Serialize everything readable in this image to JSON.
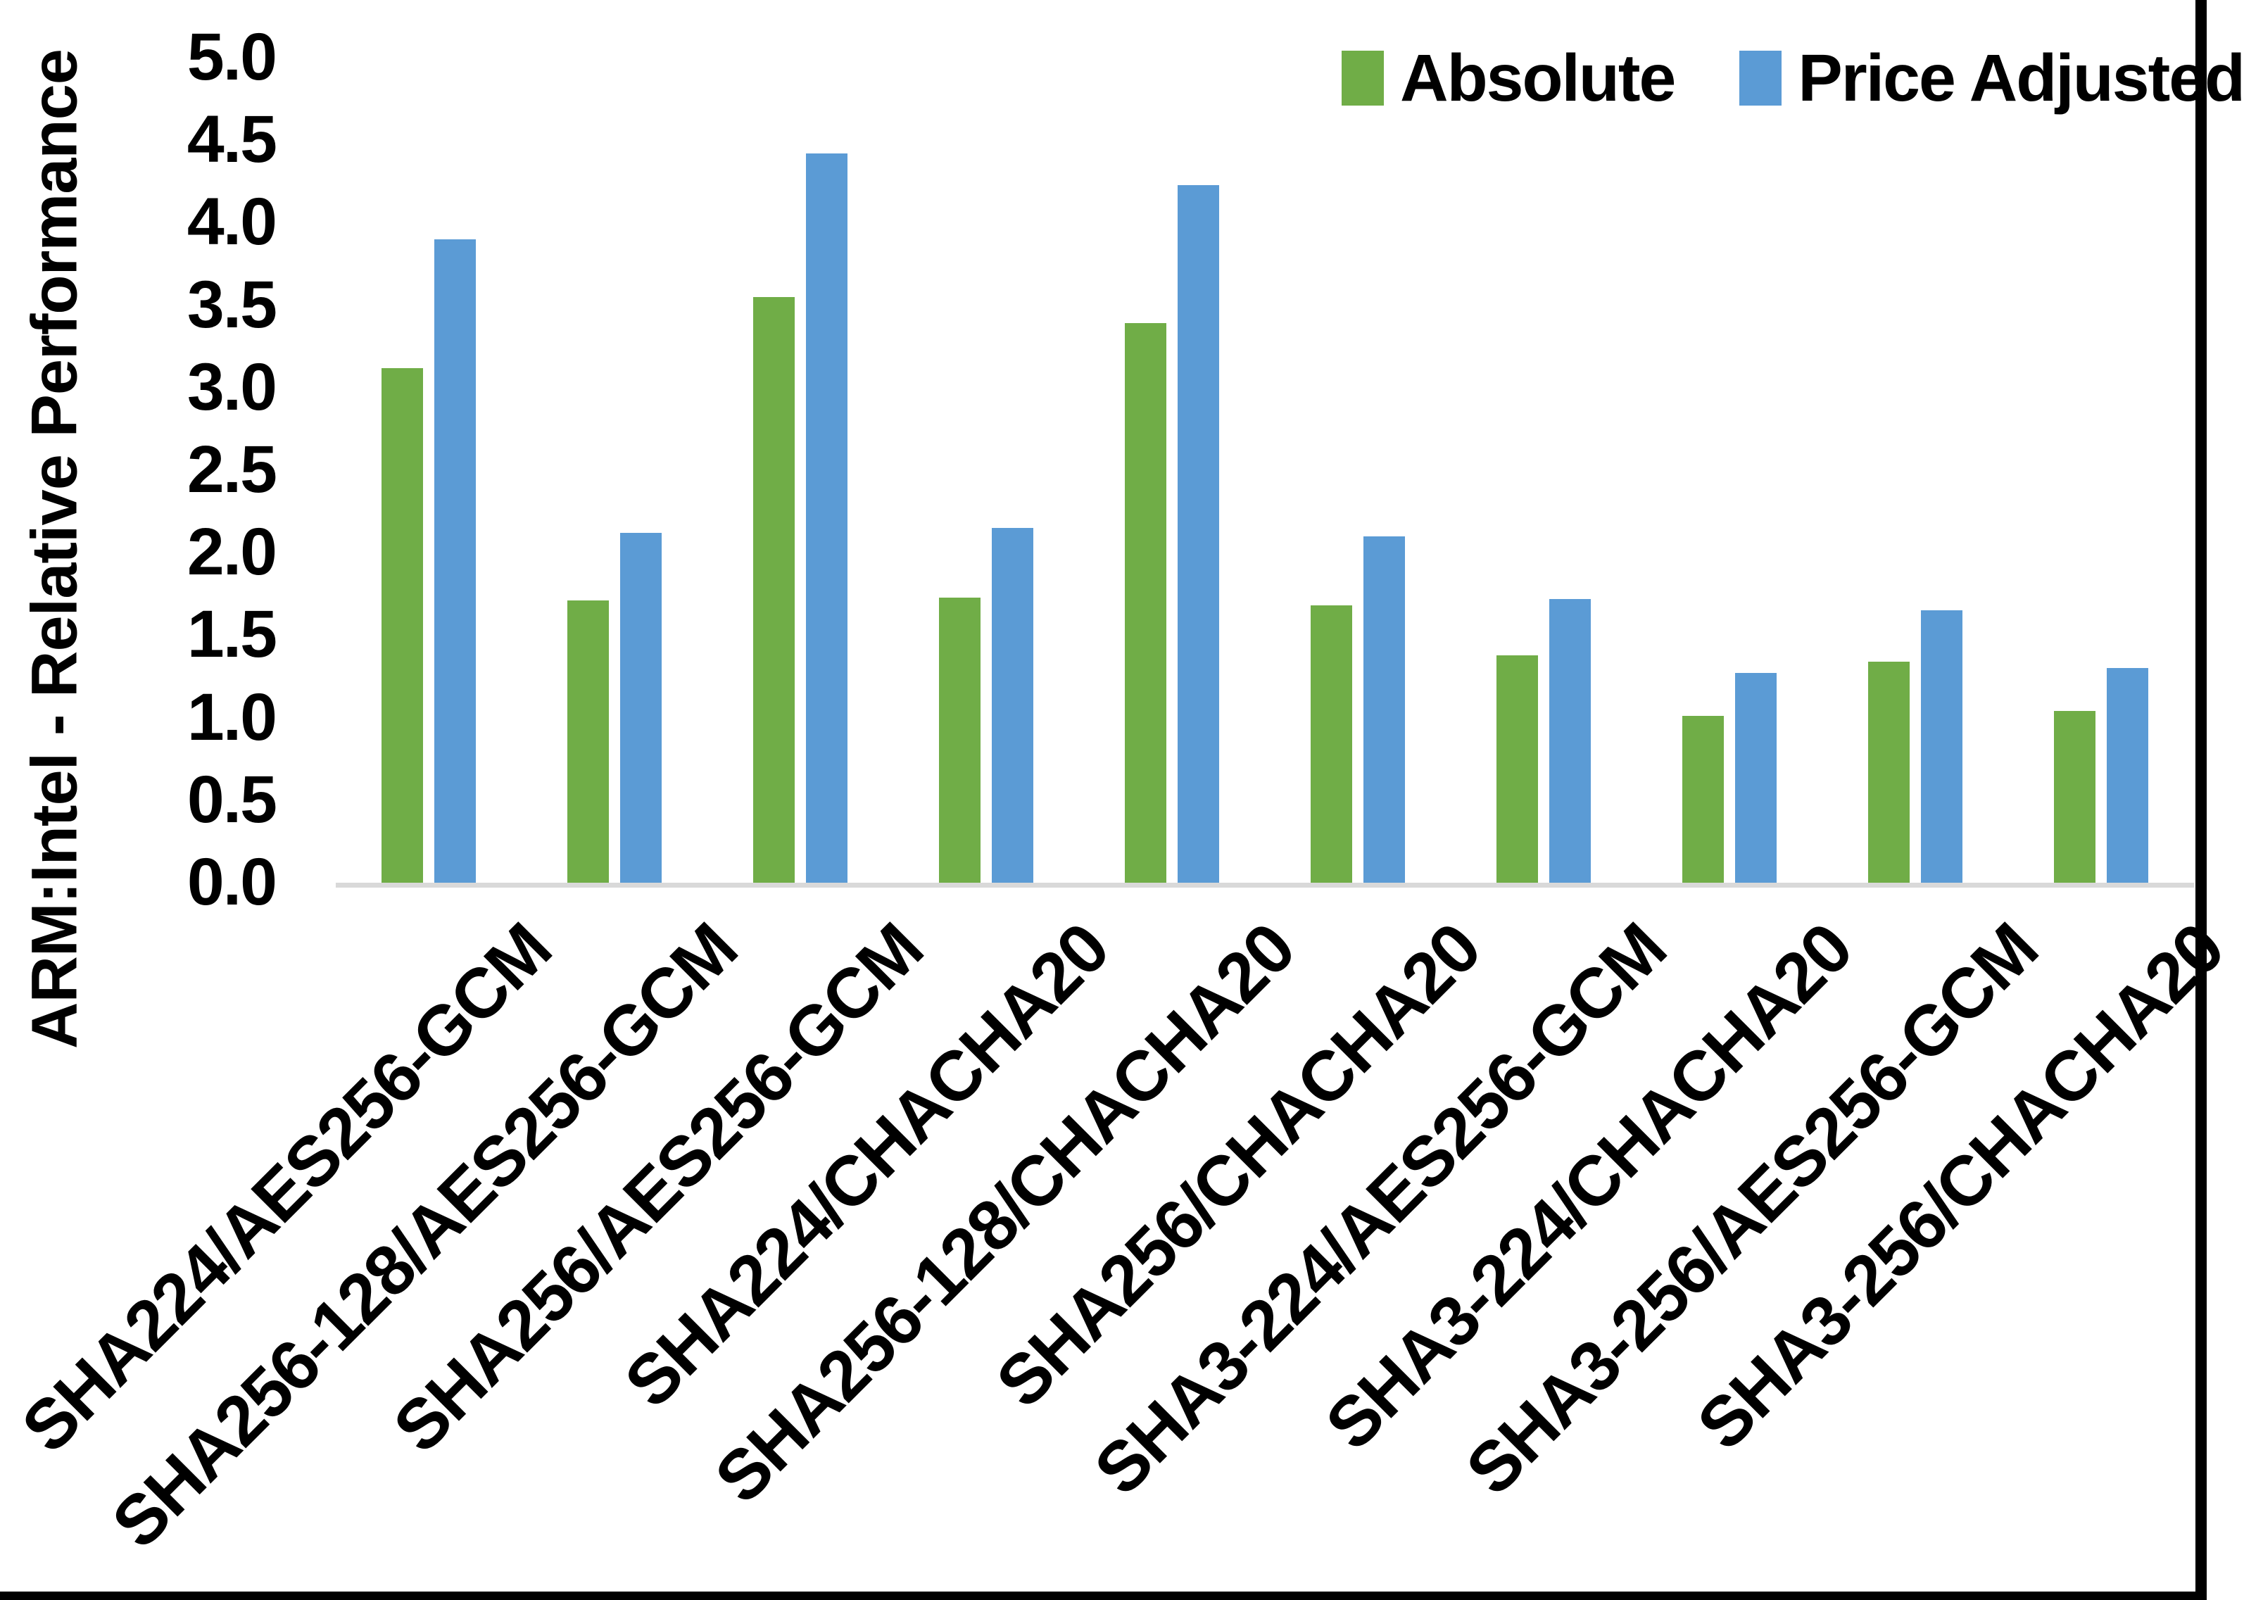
{
  "figure": {
    "background": "#FFFFFF",
    "axis_line_color": "#D9D9D9",
    "border_color": "#000000",
    "y_axis_title": "ARM:Intel - Relative Performance",
    "y_ticks": [
      "5.0",
      "4.5",
      "4.0",
      "3.5",
      "3.0",
      "2.5",
      "2.0",
      "1.5",
      "1.0",
      "0.5",
      "0.0"
    ]
  },
  "legend": [
    {
      "label": "Absolute",
      "color": "#70AD47"
    },
    {
      "label": "Price Adjusted",
      "color": "#5B9BD5"
    }
  ],
  "chart_data": {
    "type": "bar",
    "title": "",
    "xlabel": "",
    "ylabel": "ARM:Intel - Relative Performance",
    "ylim": [
      0,
      5
    ],
    "ytick_step": 0.5,
    "grid": false,
    "legend_position": "top-right",
    "categories": [
      "SHA224/AES256-GCM",
      "SHA256-128/AES256-GCM",
      "SHA256/AES256-GCM",
      "SHA224/CHACHA20",
      "SHA256-128/CHACHA20",
      "SHA256/CHACHA20",
      "SHA3-224/AES256-GCM",
      "SHA3-224/CHACHA20",
      "SHA3-256/AES256-GCM",
      "SHA3-256/CHACHA20"
    ],
    "series": [
      {
        "name": "Absolute",
        "color": "#70AD47",
        "values": [
          3.12,
          1.71,
          3.55,
          1.73,
          3.39,
          1.68,
          1.38,
          1.01,
          1.34,
          1.04
        ]
      },
      {
        "name": "Price Adjusted",
        "color": "#5B9BD5",
        "values": [
          3.9,
          2.12,
          4.42,
          2.15,
          4.23,
          2.1,
          1.72,
          1.27,
          1.65,
          1.3
        ]
      }
    ]
  }
}
